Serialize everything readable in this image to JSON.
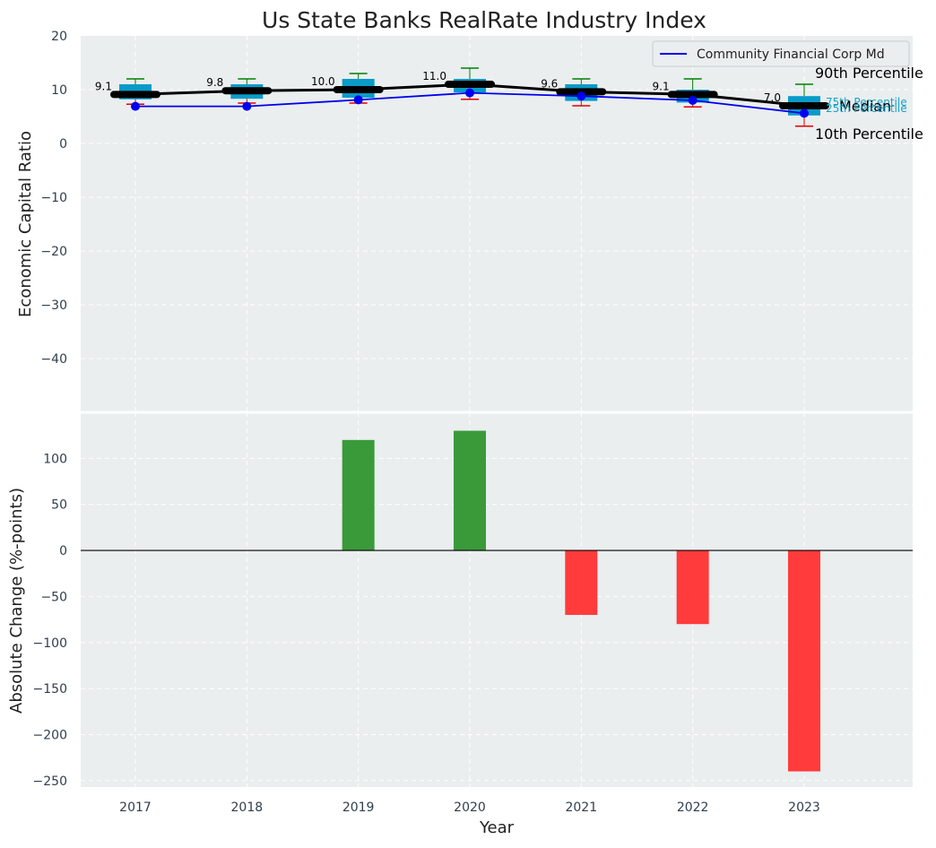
{
  "chart_data": [
    {
      "type": "box",
      "title": "Us State Banks RealRate Industry Index",
      "xlabel": "",
      "ylabel": "Economic Capital Ratio",
      "ylim": [
        -50,
        20
      ],
      "yticks": [
        20,
        10,
        0,
        -10,
        -20,
        -30,
        -40
      ],
      "categories": [
        "2017",
        "2018",
        "2019",
        "2020",
        "2021",
        "2022",
        "2023"
      ],
      "p90": [
        12.0,
        12.0,
        13.0,
        14.0,
        12.0,
        12.0,
        11.0
      ],
      "p75": [
        11.0,
        11.0,
        12.0,
        12.0,
        11.0,
        10.0,
        8.8
      ],
      "median": [
        9.1,
        9.8,
        10.0,
        11.0,
        9.6,
        9.1,
        7.0
      ],
      "p25": [
        8.2,
        8.3,
        8.5,
        9.5,
        7.9,
        7.6,
        5.2
      ],
      "p10": [
        7.3,
        7.5,
        7.5,
        8.2,
        7.0,
        6.8,
        3.2
      ],
      "median_labels": [
        "9.1",
        "9.8",
        "10.0",
        "11.0",
        "9.6",
        "9.1",
        "7.0"
      ],
      "company_series": {
        "name": "Community Financial Corp Md",
        "values": [
          6.9,
          6.9,
          8.1,
          9.4,
          8.8,
          8.0,
          5.6
        ],
        "color": "#0000ee"
      },
      "legend": {
        "location": "top-right",
        "entries": [
          "Community Financial Corp Md"
        ]
      },
      "annotations": {
        "p90": "90th Percentile",
        "p75": "75th Percentile",
        "median": "Median",
        "p25": "25th Percentile",
        "p10": "10th Percentile"
      },
      "colors": {
        "box": "#0a9bc8",
        "median": "#000000",
        "whisker_high": "#008000",
        "whisker_low": "#e00000",
        "background": "#eaeeef"
      }
    },
    {
      "type": "bar",
      "xlabel": "Year",
      "ylabel": "Absolute Change (%-points)",
      "ylim": [
        -257,
        150
      ],
      "yticks": [
        100,
        50,
        0,
        -50,
        -100,
        -150,
        -200,
        -250
      ],
      "categories": [
        "2017",
        "2018",
        "2019",
        "2020",
        "2021",
        "2022",
        "2023"
      ],
      "values": [
        0,
        0,
        120,
        130,
        -70,
        -80,
        -240
      ],
      "colors": {
        "positive": "#3a9a3a",
        "negative": "#ff3b3b"
      }
    }
  ]
}
